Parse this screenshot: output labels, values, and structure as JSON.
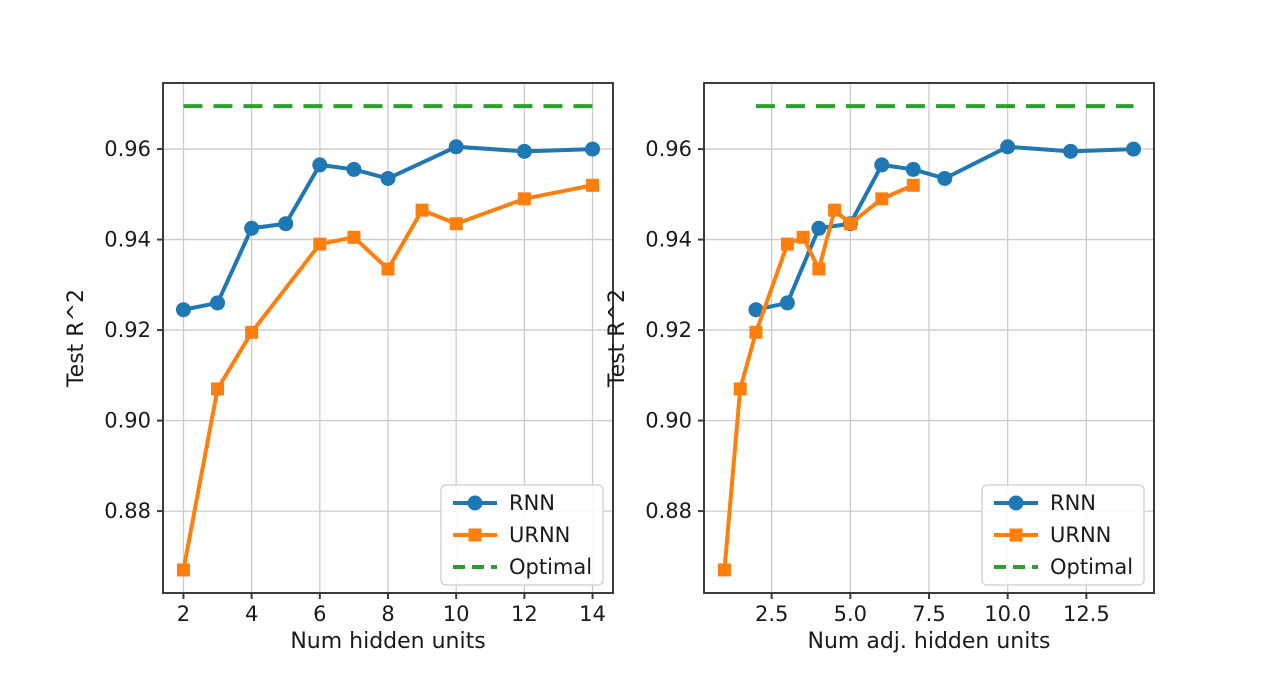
{
  "figure": {
    "background": "#ffffff",
    "text_color": "#1a1a1a",
    "grid_color": "#cccccc",
    "spine_color": "#3c3c3c",
    "legend_border_color": "#d5d5d5",
    "legend_bg": "#ffffff"
  },
  "chart_data": [
    {
      "type": "line",
      "title": "",
      "xlabel": "Num hidden units",
      "ylabel": "Test R^2",
      "xlim": [
        1.4,
        14.6
      ],
      "ylim": [
        0.8619,
        0.9746
      ],
      "xticks": [
        2,
        4,
        6,
        8,
        10,
        12,
        14
      ],
      "xtick_labels": [
        "2",
        "4",
        "6",
        "8",
        "10",
        "12",
        "14"
      ],
      "yticks": [
        0.88,
        0.9,
        0.92,
        0.94,
        0.96
      ],
      "ytick_labels": [
        "0.88",
        "0.90",
        "0.92",
        "0.94",
        "0.96"
      ],
      "grid": true,
      "legend_position": "lower right",
      "series": [
        {
          "name": "RNN",
          "color": "#1f77b4",
          "marker": "circle",
          "style": "solid",
          "x": [
            2,
            3,
            4,
            5,
            6,
            7,
            8,
            10,
            12,
            14
          ],
          "y": [
            0.9245,
            0.926,
            0.9425,
            0.9435,
            0.9565,
            0.9555,
            0.9535,
            0.9605,
            0.9595,
            0.96
          ]
        },
        {
          "name": "URNN",
          "color": "#ff7f0e",
          "marker": "square",
          "style": "solid",
          "x": [
            2,
            3,
            4,
            6,
            7,
            8,
            9,
            10,
            12,
            14
          ],
          "y": [
            0.867,
            0.907,
            0.9195,
            0.939,
            0.9405,
            0.9335,
            0.9465,
            0.9435,
            0.949,
            0.952
          ]
        },
        {
          "name": "Optimal",
          "color": "#2ca02c",
          "marker": "none",
          "style": "dashed",
          "x": [
            2,
            14
          ],
          "y": [
            0.9695,
            0.9695
          ]
        }
      ]
    },
    {
      "type": "line",
      "title": "",
      "xlabel": "Num adj. hidden units",
      "ylabel": "Test R^2",
      "xlim": [
        0.35,
        14.65
      ],
      "ylim": [
        0.8619,
        0.9746
      ],
      "xticks": [
        2.5,
        5.0,
        7.5,
        10.0,
        12.5
      ],
      "xtick_labels": [
        "2.5",
        "5.0",
        "7.5",
        "10.0",
        "12.5"
      ],
      "yticks": [
        0.88,
        0.9,
        0.92,
        0.94,
        0.96
      ],
      "ytick_labels": [
        "0.88",
        "0.90",
        "0.92",
        "0.94",
        "0.96"
      ],
      "grid": true,
      "legend_position": "lower right",
      "series": [
        {
          "name": "RNN",
          "color": "#1f77b4",
          "marker": "circle",
          "style": "solid",
          "x": [
            2,
            3,
            4,
            5,
            6,
            7,
            8,
            10,
            12,
            14
          ],
          "y": [
            0.9245,
            0.926,
            0.9425,
            0.9435,
            0.9565,
            0.9555,
            0.9535,
            0.9605,
            0.9595,
            0.96
          ]
        },
        {
          "name": "URNN",
          "color": "#ff7f0e",
          "marker": "square",
          "style": "solid",
          "x": [
            1,
            1.5,
            2,
            3,
            3.5,
            4,
            4.5,
            5,
            6,
            7
          ],
          "y": [
            0.867,
            0.907,
            0.9195,
            0.939,
            0.9405,
            0.9335,
            0.9465,
            0.9435,
            0.949,
            0.952
          ]
        },
        {
          "name": "Optimal",
          "color": "#2ca02c",
          "marker": "none",
          "style": "dashed",
          "x": [
            2,
            14
          ],
          "y": [
            0.9695,
            0.9695
          ]
        }
      ]
    }
  ]
}
